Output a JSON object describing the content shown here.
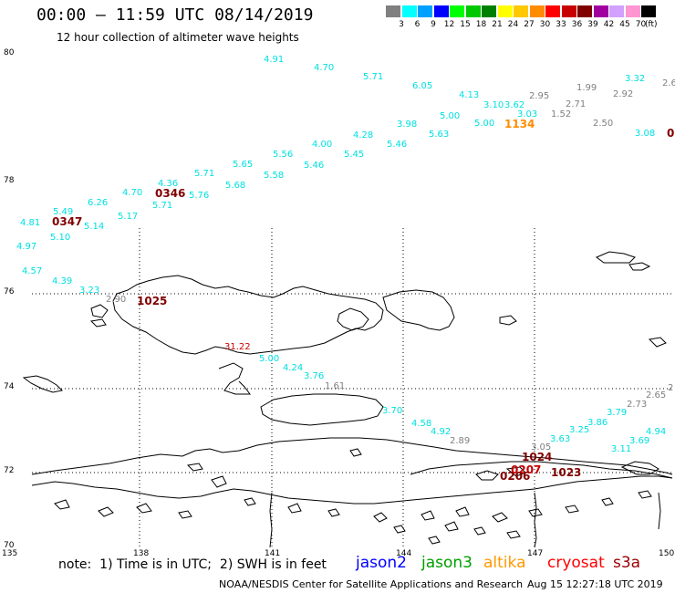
{
  "title": "00:00 – 11:59 UTC 08/14/2019",
  "subtitle": "12 hour collection of altimeter wave heights",
  "legend": {
    "unit": "(ft)",
    "bins": [
      {
        "label": "3",
        "color": "#808080"
      },
      {
        "label": "6",
        "color": "#00ffff"
      },
      {
        "label": "9",
        "color": "#00a0ff"
      },
      {
        "label": "12",
        "color": "#0000ff"
      },
      {
        "label": "15",
        "color": "#00ff00"
      },
      {
        "label": "18",
        "color": "#00c800"
      },
      {
        "label": "21",
        "color": "#008000"
      },
      {
        "label": "24",
        "color": "#ffff00"
      },
      {
        "label": "27",
        "color": "#ffc800"
      },
      {
        "label": "30",
        "color": "#ff8c00"
      },
      {
        "label": "33",
        "color": "#ff0000"
      },
      {
        "label": "36",
        "color": "#c80000"
      },
      {
        "label": "39",
        "color": "#800000"
      },
      {
        "label": "42",
        "color": "#a000a0"
      },
      {
        "label": "45",
        "color": "#d2a0ff"
      },
      {
        "label": "70",
        "color": "#ff96d2"
      },
      {
        "label": "",
        "color": "#000000"
      }
    ]
  },
  "axes": {
    "lat_labels": [
      "80",
      "78",
      "76",
      "74",
      "72",
      "70"
    ],
    "lon_labels": [
      "135",
      "138",
      "141",
      "144",
      "147",
      "150"
    ]
  },
  "readings": [
    {
      "t": "4.91",
      "c": "#00e0e0"
    },
    {
      "t": "4.70",
      "c": "#00e0e0"
    },
    {
      "t": "5.71",
      "c": "#00e0e0"
    },
    {
      "t": "6.05",
      "c": "#00e0e0"
    },
    {
      "t": "4.13",
      "c": "#00e0e0"
    },
    {
      "t": "3.10",
      "c": "#00e0e0"
    },
    {
      "t": "3.62",
      "c": "#00e0e0"
    },
    {
      "t": "2.95",
      "c": "#808080"
    },
    {
      "t": "1.99",
      "c": "#808080"
    },
    {
      "t": "3.32",
      "c": "#00e0e0"
    },
    {
      "t": "2.6",
      "c": "#808080"
    },
    {
      "t": "2.92",
      "c": "#808080"
    },
    {
      "t": "2.71",
      "c": "#808080"
    },
    {
      "t": "3.03",
      "c": "#00e0e0"
    },
    {
      "t": "1.52",
      "c": "#808080"
    },
    {
      "t": "2.50",
      "c": "#808080"
    },
    {
      "t": "3.08",
      "c": "#00e0e0"
    },
    {
      "t": "5.00",
      "c": "#00e0e0"
    },
    {
      "t": "5.00",
      "c": "#00e0e0"
    },
    {
      "t": "3.98",
      "c": "#00e0e0"
    },
    {
      "t": "5.63",
      "c": "#00e0e0"
    },
    {
      "t": "4.28",
      "c": "#00e0e0"
    },
    {
      "t": "5.46",
      "c": "#00e0e0"
    },
    {
      "t": "4.00",
      "c": "#00e0e0"
    },
    {
      "t": "5.45",
      "c": "#00e0e0"
    },
    {
      "t": "5.56",
      "c": "#00e0e0"
    },
    {
      "t": "5.46",
      "c": "#00e0e0"
    },
    {
      "t": "5.65",
      "c": "#00e0e0"
    },
    {
      "t": "5.58",
      "c": "#00e0e0"
    },
    {
      "t": "5.71",
      "c": "#00e0e0"
    },
    {
      "t": "5.68",
      "c": "#00e0e0"
    },
    {
      "t": "4.36",
      "c": "#00e0e0"
    },
    {
      "t": "5.76",
      "c": "#00e0e0"
    },
    {
      "t": "4.70",
      "c": "#00e0e0"
    },
    {
      "t": "5.71",
      "c": "#00e0e0"
    },
    {
      "t": "6.26",
      "c": "#00e0e0"
    },
    {
      "t": "5.17",
      "c": "#00e0e0"
    },
    {
      "t": "5.49",
      "c": "#00e0e0"
    },
    {
      "t": "5.14",
      "c": "#00e0e0"
    },
    {
      "t": "4.81",
      "c": "#00e0e0"
    },
    {
      "t": "5.10",
      "c": "#00e0e0"
    },
    {
      "t": "4.97",
      "c": "#00e0e0"
    },
    {
      "t": "4.57",
      "c": "#00e0e0"
    },
    {
      "t": "4.39",
      "c": "#00e0e0"
    },
    {
      "t": "3.23",
      "c": "#00e0e0"
    },
    {
      "t": "2.90",
      "c": "#808080"
    },
    {
      "t": "31.22",
      "c": "#c80000"
    },
    {
      "t": "5.00",
      "c": "#00e0e0"
    },
    {
      "t": "4.24",
      "c": "#00e0e0"
    },
    {
      "t": "3.76",
      "c": "#00e0e0"
    },
    {
      "t": "1.61",
      "c": "#808080"
    },
    {
      "t": "3.70",
      "c": "#00e0e0"
    },
    {
      "t": "4.58",
      "c": "#00e0e0"
    },
    {
      "t": "4.92",
      "c": "#00e0e0"
    },
    {
      "t": "2.89",
      "c": "#808080"
    },
    {
      "t": "3.05",
      "c": "#808080"
    },
    {
      "t": "3.63",
      "c": "#00e0e0"
    },
    {
      "t": "3.25",
      "c": "#00e0e0"
    },
    {
      "t": "3.86",
      "c": "#00e0e0"
    },
    {
      "t": "3.79",
      "c": "#00e0e0"
    },
    {
      "t": "2.73",
      "c": "#808080"
    },
    {
      "t": "2.65",
      "c": "#808080"
    },
    {
      "t": "4.94",
      "c": "#00e0e0"
    },
    {
      "t": "3.69",
      "c": "#00e0e0"
    },
    {
      "t": "3.11",
      "c": "#00e0e0"
    },
    {
      "t": "2",
      "c": "#808080"
    }
  ],
  "pass_times": [
    {
      "t": "1134",
      "c": "#ff8c00"
    },
    {
      "t": "0346",
      "c": "#800000"
    },
    {
      "t": "0347",
      "c": "#800000"
    },
    {
      "t": "1025",
      "c": "#800000"
    },
    {
      "t": "1024",
      "c": "#800000"
    },
    {
      "t": "0207",
      "c": "#c80000"
    },
    {
      "t": "0206",
      "c": "#800000"
    },
    {
      "t": "1023",
      "c": "#800000"
    },
    {
      "t": "0",
      "c": "#800000"
    }
  ],
  "footer": {
    "note": "note:  1) Time is in UTC;  2) SWH is in feet",
    "satellites": [
      {
        "name": "jason2",
        "color": "#0000ff"
      },
      {
        "name": "jason3",
        "color": "#00a000"
      },
      {
        "name": "altika",
        "color": "#ff9900"
      },
      {
        "name": "cryosat",
        "color": "#ff0000"
      },
      {
        "name": "s3a",
        "color": "#990000"
      }
    ],
    "credit": "NOAA/NESDIS Center for Satellite Applications and Research",
    "timestamp": "Aug 15 12:27:18 UTC 2019"
  }
}
